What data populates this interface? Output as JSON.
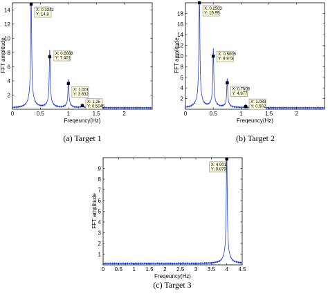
{
  "chart_data": [
    {
      "type": "line",
      "caption": "(a) Target 1",
      "xlabel": "Freqeuncy(Hz)",
      "ylabel": "FFT amplitude",
      "xlim": [
        0,
        2.5
      ],
      "ylim": [
        0,
        15
      ],
      "xticks": [
        "0",
        "0.5",
        "1",
        "1.5",
        "2"
      ],
      "xtick_values": [
        0,
        0.5,
        1,
        1.5,
        2
      ],
      "yticks": [
        "2",
        "4",
        "6",
        "8",
        "10",
        "12",
        "14"
      ],
      "ytick_values": [
        2,
        4,
        6,
        8,
        10,
        12,
        14
      ],
      "line_color": "#1f3fd6",
      "peaks": [
        {
          "x": 0.3342,
          "y": 14.8,
          "label_x": "X: 0.3342",
          "label_y": "Y: 14.8"
        },
        {
          "x": 0.6668,
          "y": 7.401,
          "label_x": "X: 0.6668",
          "label_y": "Y: 7.401"
        },
        {
          "x": 1.001,
          "y": 3.632,
          "label_x": "X: 1.001",
          "label_y": "Y: 3.632"
        },
        {
          "x": 1.25,
          "y": 0.5045,
          "label_x": "X: 1.25",
          "label_y": "Y: 0.5045"
        }
      ]
    },
    {
      "type": "line",
      "caption": "(b) Target 2",
      "xlabel": "Freqeuncy(Hz)",
      "ylabel": "FFT amplitude",
      "xlim": [
        0,
        2.5
      ],
      "ylim": [
        0,
        20
      ],
      "xticks": [
        "0",
        "0.5",
        "1",
        "1.5",
        "2"
      ],
      "xtick_values": [
        0,
        0.5,
        1,
        1.5,
        2
      ],
      "yticks": [
        "2",
        "4",
        "6",
        "8",
        "10",
        "12",
        "14",
        "16",
        "18"
      ],
      "ytick_values": [
        2,
        4,
        6,
        8,
        10,
        12,
        14,
        16,
        18
      ],
      "line_color": "#1f3fd6",
      "peaks": [
        {
          "x": 0.2503,
          "y": 19.99,
          "label_x": "X: 0.2503",
          "label_y": "Y: 19.99"
        },
        {
          "x": 0.5005,
          "y": 9.973,
          "label_x": "X: 0.5005",
          "label_y": "Y: 9.973"
        },
        {
          "x": 0.7508,
          "y": 4.977,
          "label_x": "X: 0.7508",
          "label_y": "Y: 4.977"
        },
        {
          "x": 1.083,
          "y": 0.502,
          "label_x": "X: 1.083",
          "label_y": "Y: 0.502"
        }
      ]
    },
    {
      "type": "line",
      "caption": "(c) Target 3",
      "xlabel": "Freqeuncy(Hz)",
      "ylabel": "FFT amplitude",
      "xlim": [
        0,
        4.5
      ],
      "ylim": [
        0,
        10
      ],
      "xticks": [
        "0",
        "0.5",
        "1",
        "1.5",
        "2",
        "2.5",
        "3",
        "3.5",
        "4",
        "4.5"
      ],
      "xtick_values": [
        0,
        0.5,
        1,
        1.5,
        2,
        2.5,
        3,
        3.5,
        4,
        4.5
      ],
      "yticks": [
        "1",
        "2",
        "3",
        "4",
        "5",
        "6",
        "7",
        "8",
        "9"
      ],
      "ytick_values": [
        1,
        2,
        3,
        4,
        5,
        6,
        7,
        8,
        9
      ],
      "line_color": "#1f3fd6",
      "peaks": [
        {
          "x": 4.001,
          "y": 9.879,
          "label_x": "X: 4.001",
          "label_y": "Y: 9.879"
        }
      ]
    }
  ]
}
